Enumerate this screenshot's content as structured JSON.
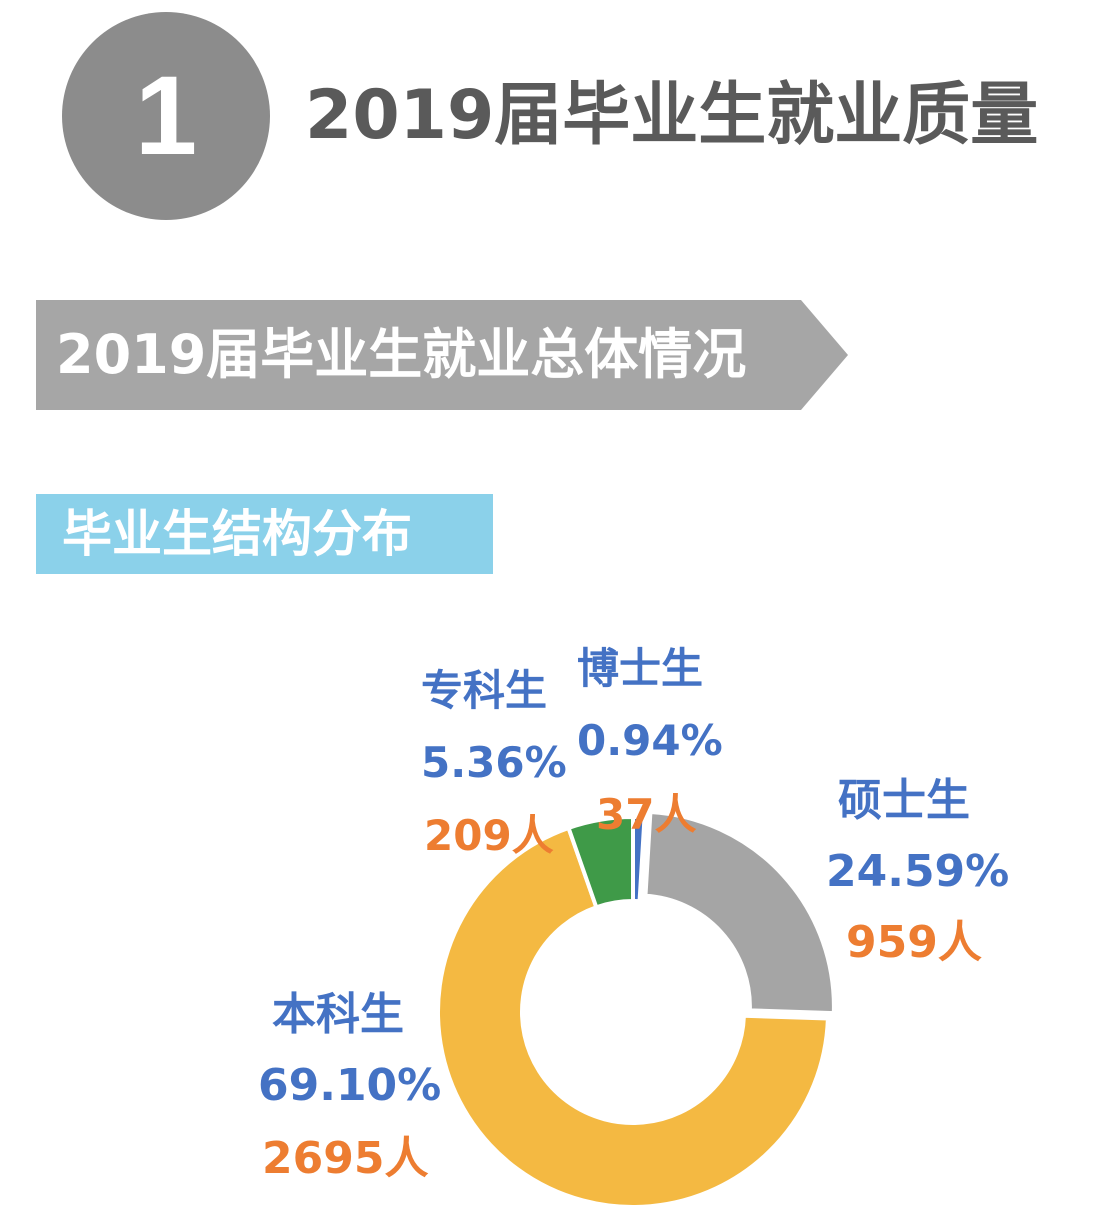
{
  "header": {
    "number": "1",
    "title": "2019届毕业生就业质量"
  },
  "banner": {
    "title": "2019届毕业生就业总体情况"
  },
  "section": {
    "title": "毕业生结构分布"
  },
  "colors": {
    "circle": "#8c8c8c",
    "banner": "#a6a6a6",
    "section": "#8bd1ea",
    "label_name": "#4472c4",
    "label_count": "#ed7d31"
  },
  "chart_data": {
    "type": "pie",
    "style": "donut",
    "series": [
      {
        "name": "博士生",
        "percent_label": "0.94%",
        "count_label": "37人",
        "percent": 0.94,
        "count": 37,
        "color": "#4472c4"
      },
      {
        "name": "硕士生",
        "percent_label": "24.59%",
        "count_label": "959人",
        "percent": 24.59,
        "count": 959,
        "color": "#a5a5a5"
      },
      {
        "name": "本科生",
        "percent_label": "69.10%",
        "count_label": "2695人",
        "percent": 69.1,
        "count": 2695,
        "color": "#f4b942"
      },
      {
        "name": "专科生",
        "percent_label": "5.36%",
        "count_label": "209人",
        "percent": 5.36,
        "count": 209,
        "color": "#3f9a48"
      }
    ]
  }
}
